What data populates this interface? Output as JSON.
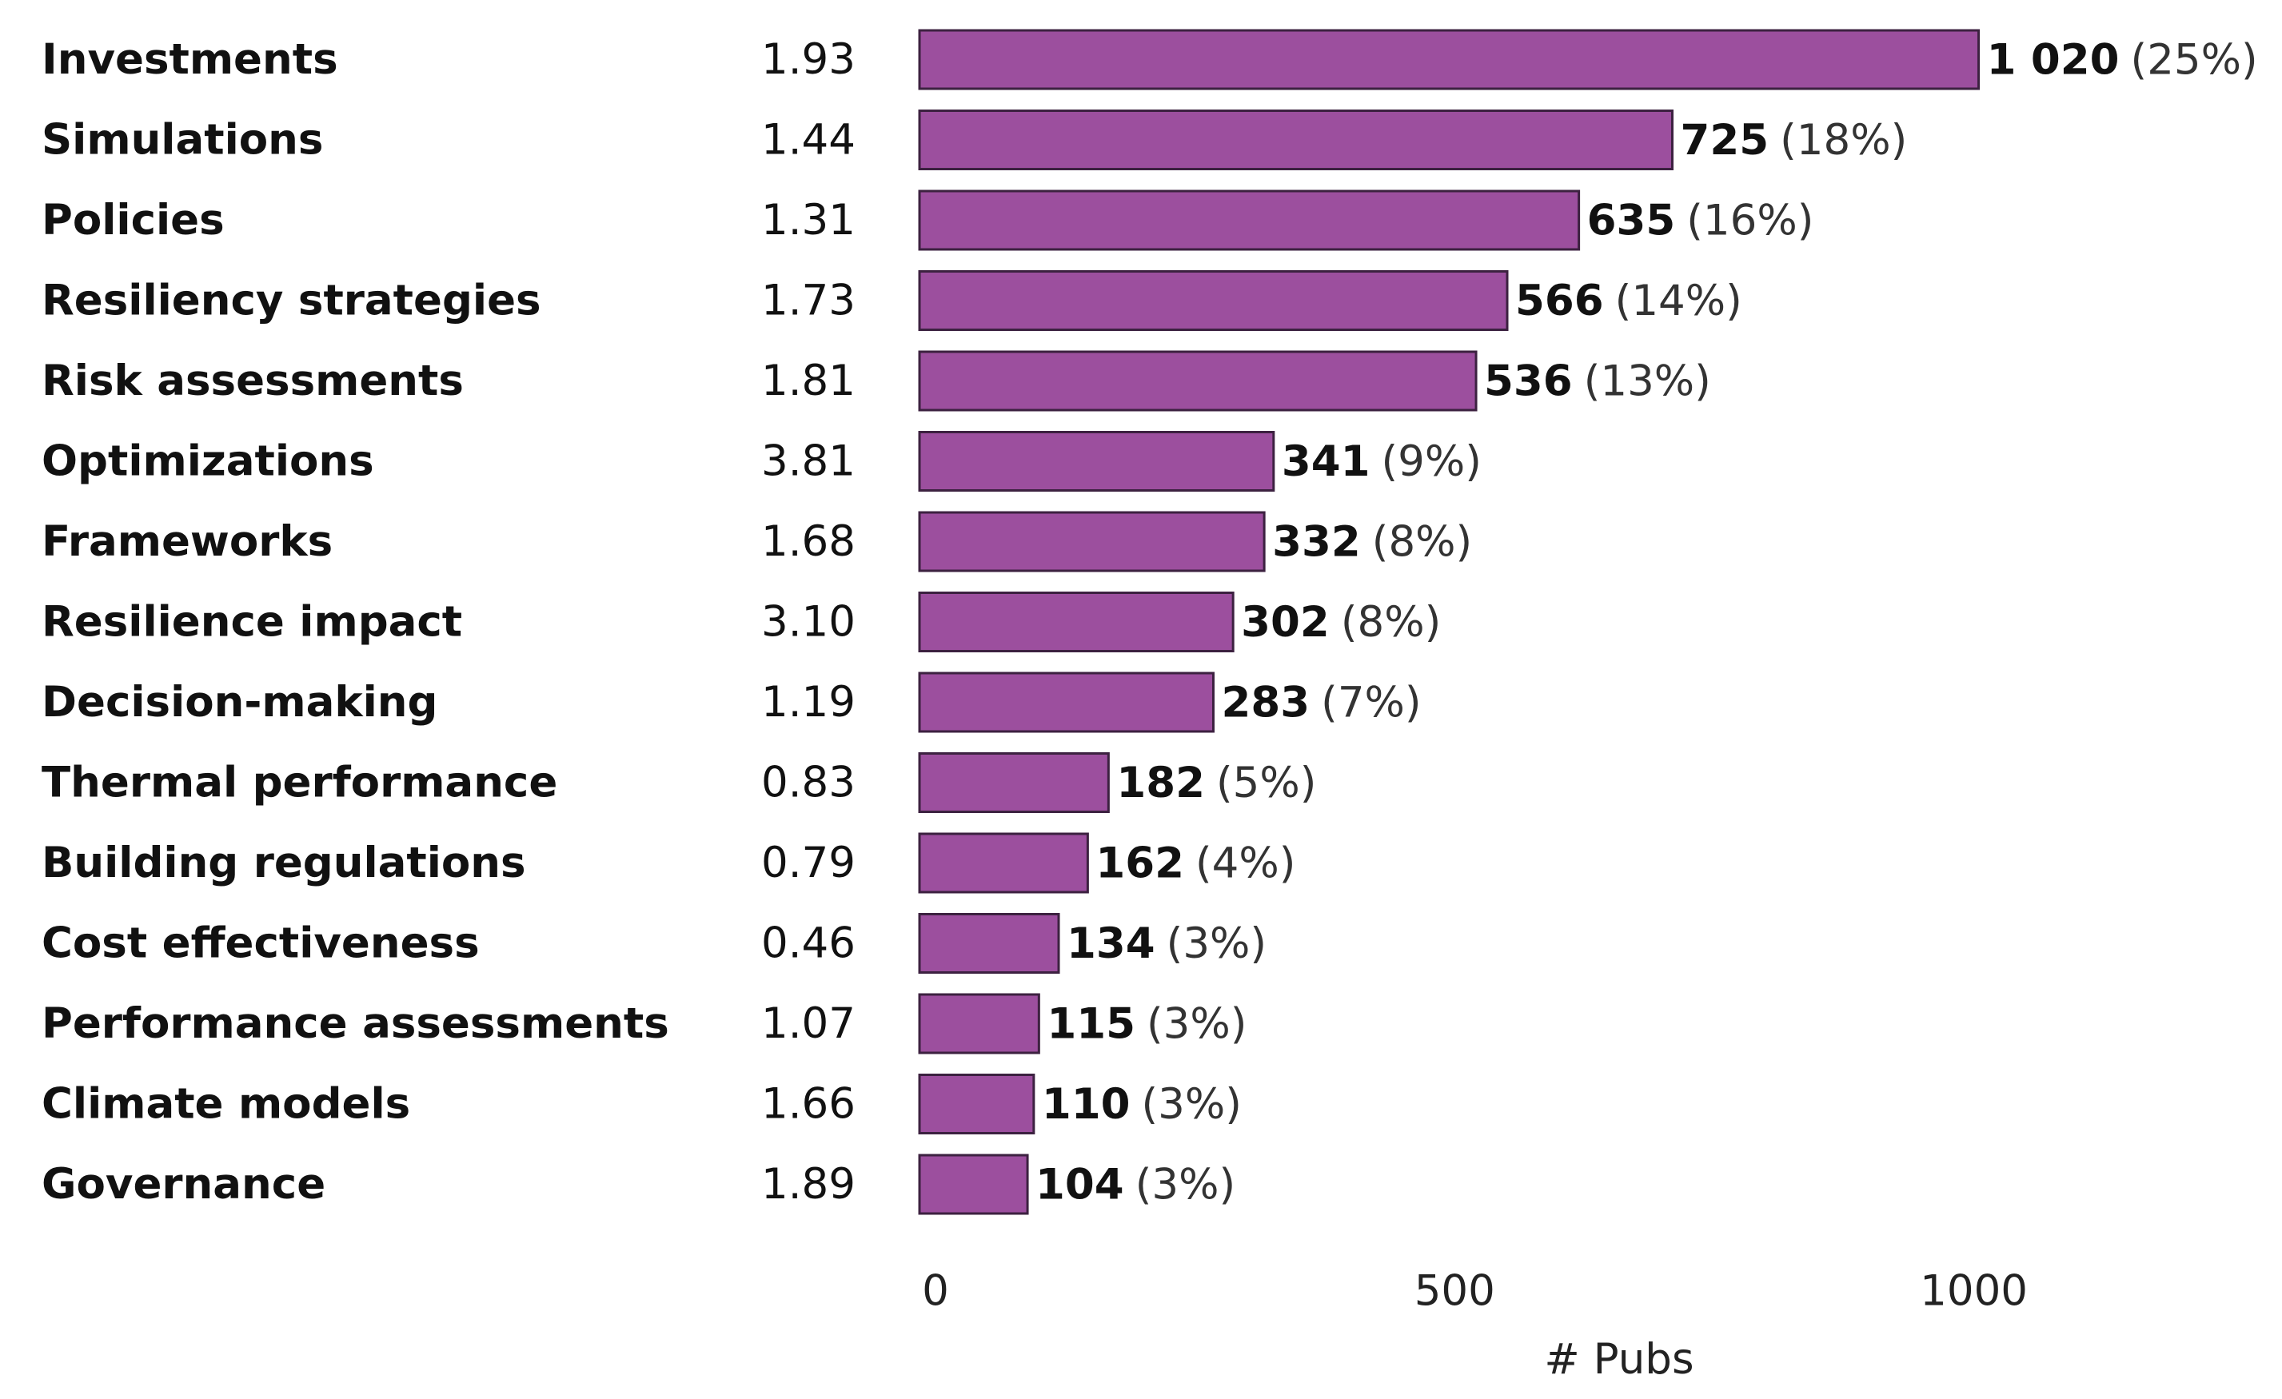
{
  "chart_data": {
    "type": "bar",
    "orientation": "horizontal",
    "categories": [
      "Investments",
      "Simulations",
      "Policies",
      "Resiliency strategies",
      "Risk assessments",
      "Optimizations",
      "Frameworks",
      "Resilience impact",
      "Decision-making",
      "Thermal performance",
      "Building regulations",
      "Cost effectiveness",
      "Performance assessments",
      "Climate models",
      "Governance"
    ],
    "values": [
      1020,
      725,
      635,
      566,
      536,
      341,
      332,
      302,
      283,
      182,
      162,
      134,
      115,
      110,
      104
    ],
    "value_labels": [
      "1 020",
      "725",
      "635",
      "566",
      "536",
      "341",
      "332",
      "302",
      "283",
      "182",
      "162",
      "134",
      "115",
      "110",
      "104"
    ],
    "percent_labels": [
      "(25%)",
      "(18%)",
      "(16%)",
      "(14%)",
      "(13%)",
      "(9%)",
      "(8%)",
      "(8%)",
      "(7%)",
      "(5%)",
      "(4%)",
      "(3%)",
      "(3%)",
      "(3%)",
      "(3%)"
    ],
    "secondary_values": [
      "1.93",
      "1.44",
      "1.31",
      "1.73",
      "1.81",
      "3.81",
      "1.68",
      "3.10",
      "1.19",
      "0.83",
      "0.79",
      "0.46",
      "1.07",
      "1.66",
      "1.89"
    ],
    "x_ticks": [
      0,
      500,
      1000
    ],
    "x_tick_labels": [
      "0",
      "500",
      "1000"
    ],
    "xlim": [
      0,
      1300
    ],
    "xlabel": "# Pubs",
    "grid": false,
    "bar_color": "#9c4f9e",
    "bar_outline": "#3c2140"
  }
}
